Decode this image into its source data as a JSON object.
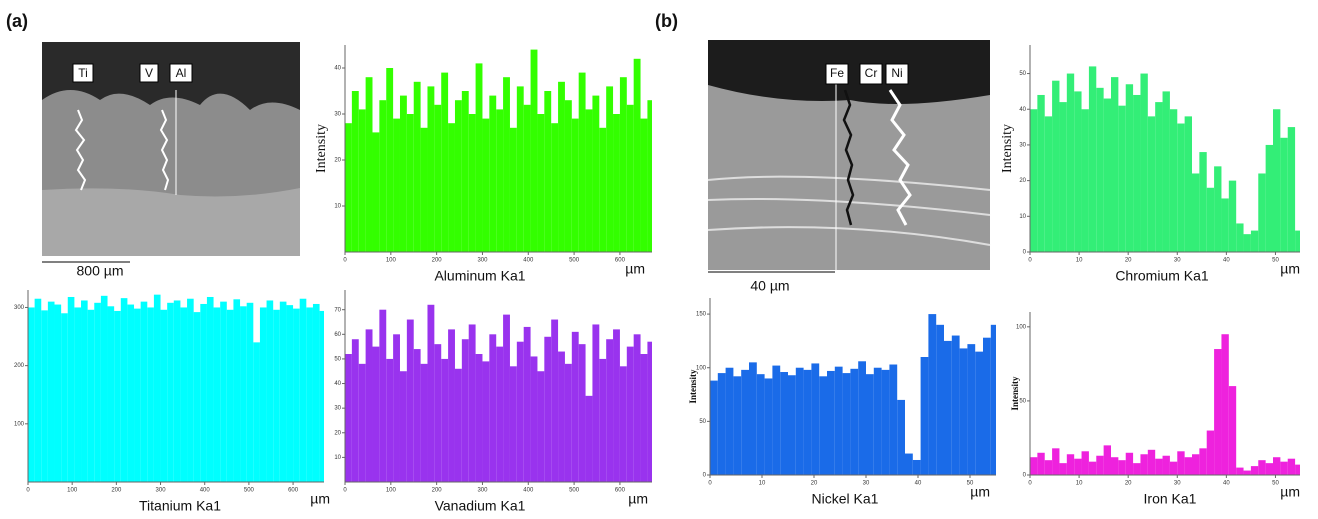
{
  "figure": {
    "panel_labels": [
      "(a)",
      "(b)"
    ],
    "images": [
      {
        "labels": [
          "Ti",
          "V",
          "Al"
        ],
        "scale_bar": "800 µm"
      },
      {
        "labels": [
          "Fe",
          "Cr",
          "Ni"
        ],
        "scale_bar": "40 µm"
      }
    ]
  },
  "chart_data": [
    {
      "type": "bar",
      "x_label": "Aluminum Ka1",
      "x_unit": "µm",
      "y_label": "Intensity",
      "color": "#33ff00",
      "x": [
        0,
        15,
        30,
        45,
        60,
        75,
        90,
        105,
        120,
        135,
        150,
        165,
        180,
        195,
        210,
        225,
        240,
        255,
        270,
        285,
        300,
        315,
        330,
        345,
        360,
        375,
        390,
        405,
        420,
        435,
        450,
        465,
        480,
        495,
        510,
        525,
        540,
        555,
        570,
        585,
        600,
        615,
        630,
        645,
        660
      ],
      "values": [
        28,
        35,
        31,
        38,
        26,
        33,
        40,
        29,
        34,
        30,
        37,
        27,
        36,
        32,
        39,
        28,
        33,
        35,
        30,
        41,
        29,
        34,
        31,
        38,
        27,
        36,
        32,
        44,
        30,
        35,
        28,
        37,
        33,
        29,
        39,
        31,
        34,
        27,
        36,
        30,
        38,
        32,
        42,
        29,
        33
      ],
      "xlim": [
        0,
        670
      ],
      "ylim": [
        0,
        45
      ],
      "xticks": [
        0,
        100,
        200,
        300,
        400,
        500,
        600
      ],
      "yticks": [
        10,
        20,
        30,
        40
      ]
    },
    {
      "type": "bar",
      "x_label": "Titanium Ka1",
      "x_unit": "µm",
      "color": "#00ffff",
      "x": [
        0,
        15,
        30,
        45,
        60,
        75,
        90,
        105,
        120,
        135,
        150,
        165,
        180,
        195,
        210,
        225,
        240,
        255,
        270,
        285,
        300,
        315,
        330,
        345,
        360,
        375,
        390,
        405,
        420,
        435,
        450,
        465,
        480,
        495,
        510,
        525,
        540,
        555,
        570,
        585,
        600,
        615,
        630,
        645,
        660
      ],
      "values": [
        300,
        315,
        295,
        310,
        305,
        290,
        318,
        300,
        312,
        296,
        308,
        320,
        302,
        294,
        316,
        305,
        298,
        310,
        300,
        322,
        296,
        308,
        312,
        300,
        315,
        292,
        306,
        318,
        300,
        310,
        296,
        314,
        302,
        308,
        240,
        300,
        312,
        296,
        310,
        304,
        298,
        315,
        300,
        306,
        294
      ],
      "xlim": [
        0,
        670
      ],
      "ylim": [
        0,
        330
      ],
      "xticks": [
        0,
        100,
        200,
        300,
        400,
        500,
        600
      ],
      "yticks": [
        100,
        200,
        300
      ]
    },
    {
      "type": "bar",
      "x_label": "Vanadium Ka1",
      "x_unit": "µm",
      "color": "#9933ee",
      "x": [
        0,
        15,
        30,
        45,
        60,
        75,
        90,
        105,
        120,
        135,
        150,
        165,
        180,
        195,
        210,
        225,
        240,
        255,
        270,
        285,
        300,
        315,
        330,
        345,
        360,
        375,
        390,
        405,
        420,
        435,
        450,
        465,
        480,
        495,
        510,
        525,
        540,
        555,
        570,
        585,
        600,
        615,
        630,
        645,
        660
      ],
      "values": [
        52,
        58,
        48,
        62,
        55,
        70,
        50,
        60,
        45,
        66,
        54,
        48,
        72,
        56,
        50,
        62,
        46,
        58,
        64,
        52,
        49,
        60,
        55,
        68,
        47,
        57,
        63,
        51,
        45,
        59,
        66,
        53,
        48,
        61,
        56,
        35,
        64,
        50,
        58,
        62,
        47,
        55,
        60,
        52,
        57
      ],
      "xlim": [
        0,
        670
      ],
      "ylim": [
        0,
        78
      ],
      "xticks": [
        0,
        100,
        200,
        300,
        400,
        500,
        600
      ],
      "yticks": [
        10,
        20,
        30,
        40,
        50,
        60,
        70
      ]
    },
    {
      "type": "bar",
      "x_label": "Chromium Ka1",
      "x_unit": "µm",
      "y_label": "Intensity",
      "color": "#33ee77",
      "x": [
        0,
        1.5,
        3,
        4.5,
        6,
        7.5,
        9,
        10.5,
        12,
        13.5,
        15,
        16.5,
        18,
        19.5,
        21,
        22.5,
        24,
        25.5,
        27,
        28.5,
        30,
        31.5,
        33,
        34.5,
        36,
        37.5,
        39,
        40.5,
        42,
        43.5,
        45,
        46.5,
        48,
        49.5,
        51,
        52.5,
        54
      ],
      "values": [
        40,
        44,
        38,
        48,
        42,
        50,
        45,
        40,
        52,
        46,
        43,
        49,
        41,
        47,
        44,
        50,
        38,
        42,
        45,
        40,
        36,
        38,
        22,
        28,
        18,
        24,
        15,
        20,
        8,
        5,
        6,
        22,
        30,
        40,
        32,
        35,
        6
      ],
      "xlim": [
        0,
        55
      ],
      "ylim": [
        0,
        58
      ],
      "xticks": [
        0,
        10,
        20,
        30,
        40,
        50
      ],
      "yticks": [
        0,
        10,
        20,
        30,
        40,
        50
      ]
    },
    {
      "type": "bar",
      "x_label": "Nickel Ka1",
      "x_unit": "µm",
      "y_label": "Intensity",
      "color": "#1a6be8",
      "x": [
        0,
        1.5,
        3,
        4.5,
        6,
        7.5,
        9,
        10.5,
        12,
        13.5,
        15,
        16.5,
        18,
        19.5,
        21,
        22.5,
        24,
        25.5,
        27,
        28.5,
        30,
        31.5,
        33,
        34.5,
        36,
        37.5,
        39,
        40.5,
        42,
        43.5,
        45,
        46.5,
        48,
        49.5,
        51,
        52.5,
        54
      ],
      "values": [
        88,
        95,
        100,
        92,
        98,
        105,
        94,
        90,
        102,
        96,
        93,
        100,
        98,
        104,
        92,
        97,
        101,
        95,
        99,
        106,
        94,
        100,
        98,
        103,
        70,
        20,
        14,
        110,
        150,
        140,
        125,
        130,
        118,
        122,
        115,
        128,
        140
      ],
      "xlim": [
        0,
        55
      ],
      "ylim": [
        0,
        165
      ],
      "xticks": [
        0,
        10,
        20,
        30,
        40,
        50
      ],
      "yticks": [
        0,
        50,
        100,
        150
      ]
    },
    {
      "type": "bar",
      "x_label": "Iron Ka1",
      "x_unit": "µm",
      "y_label": "Intensity",
      "color": "#ee22dd",
      "x": [
        0,
        1.5,
        3,
        4.5,
        6,
        7.5,
        9,
        10.5,
        12,
        13.5,
        15,
        16.5,
        18,
        19.5,
        21,
        22.5,
        24,
        25.5,
        27,
        28.5,
        30,
        31.5,
        33,
        34.5,
        36,
        37.5,
        39,
        40.5,
        42,
        43.5,
        45,
        46.5,
        48,
        49.5,
        51,
        52.5,
        54
      ],
      "values": [
        12,
        15,
        10,
        18,
        8,
        14,
        11,
        16,
        9,
        13,
        20,
        12,
        10,
        15,
        8,
        14,
        17,
        11,
        13,
        9,
        16,
        12,
        14,
        18,
        30,
        85,
        95,
        60,
        5,
        3,
        6,
        10,
        8,
        12,
        9,
        11,
        7
      ],
      "xlim": [
        0,
        55
      ],
      "ylim": [
        0,
        110
      ],
      "xticks": [
        0,
        10,
        20,
        30,
        40,
        50
      ],
      "yticks": [
        0,
        50,
        100
      ]
    }
  ]
}
